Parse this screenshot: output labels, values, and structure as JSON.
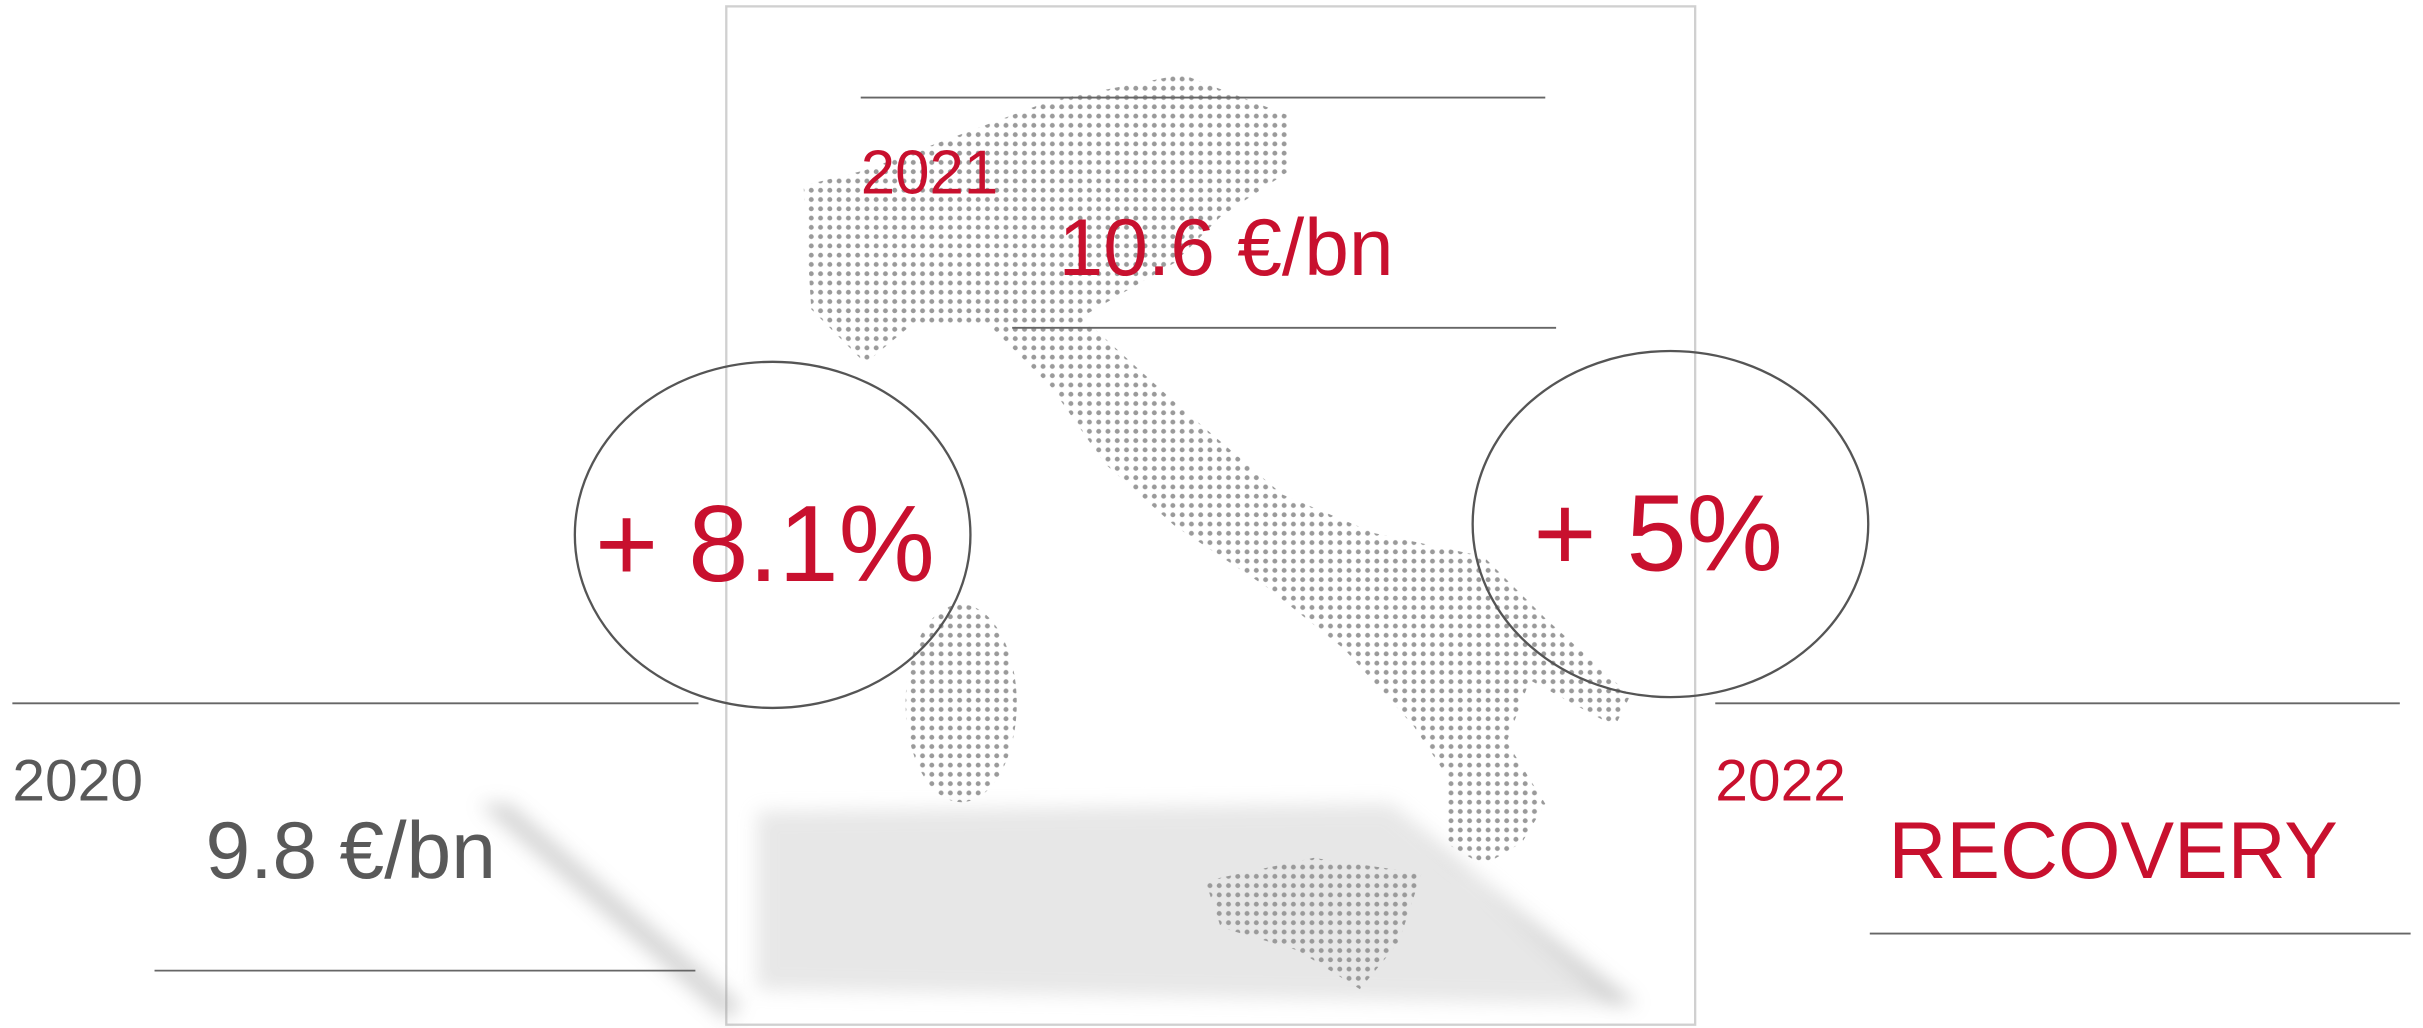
{
  "periods": [
    {
      "year": "2020",
      "value": "9.8 €/bn"
    },
    {
      "year": "2021",
      "value": "10.6 €/bn"
    },
    {
      "year": "2022",
      "value": "RECOVERY"
    }
  ],
  "growth": [
    "+ 8.1%",
    "+ 5%"
  ]
}
